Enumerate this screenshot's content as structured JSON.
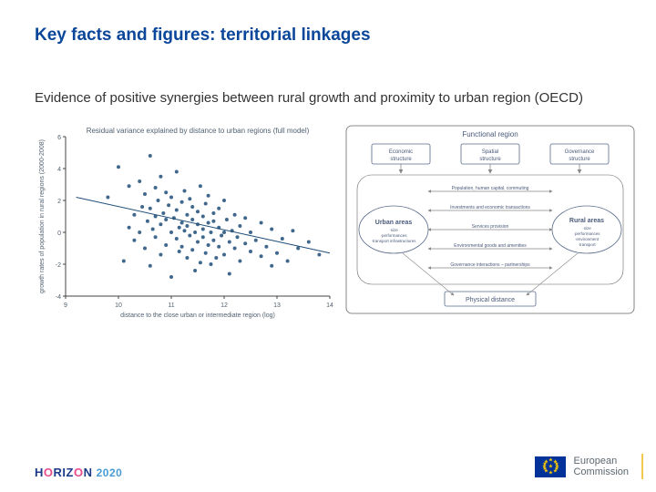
{
  "title": "Key facts and figures: territorial linkages",
  "subtitle": "Evidence of positive synergies between rural growth and proximity to urban region (OECD)",
  "scatter": {
    "type": "scatter",
    "title": "Residual variance explained by distance to urban regions (full model)",
    "xlabel": "distance to the close urban or intermediate region (log)",
    "ylabel": "growth rates of population in rural regions (2000-2008)",
    "xlim": [
      9,
      14
    ],
    "ylim": [
      -4,
      6
    ],
    "xticks": [
      9,
      10,
      11,
      12,
      13,
      14
    ],
    "yticks": [
      -4,
      -2,
      0,
      2,
      4,
      6
    ],
    "point_color": "#1f4e79",
    "axis_color": "#444444",
    "grid_color": "#cccccc",
    "background_color": "#ffffff",
    "font_size": 7,
    "marker_size": 2,
    "trend": {
      "x1": 9.2,
      "y1": 2.2,
      "x2": 14.0,
      "y2": -1.3,
      "color": "#1f4e79",
      "width": 1
    },
    "points": [
      [
        9.8,
        2.2
      ],
      [
        10.0,
        4.1
      ],
      [
        10.1,
        -1.8
      ],
      [
        10.2,
        0.3
      ],
      [
        10.2,
        2.9
      ],
      [
        10.3,
        1.1
      ],
      [
        10.3,
        -0.5
      ],
      [
        10.4,
        3.2
      ],
      [
        10.4,
        0.0
      ],
      [
        10.45,
        1.6
      ],
      [
        10.5,
        2.4
      ],
      [
        10.5,
        -1.0
      ],
      [
        10.55,
        0.7
      ],
      [
        10.6,
        4.8
      ],
      [
        10.6,
        1.5
      ],
      [
        10.6,
        -2.1
      ],
      [
        10.65,
        0.2
      ],
      [
        10.7,
        2.8
      ],
      [
        10.7,
        1.0
      ],
      [
        10.7,
        -0.3
      ],
      [
        10.75,
        2.0
      ],
      [
        10.8,
        0.5
      ],
      [
        10.8,
        3.5
      ],
      [
        10.8,
        -1.4
      ],
      [
        10.85,
        1.2
      ],
      [
        10.9,
        0.8
      ],
      [
        10.9,
        2.5
      ],
      [
        10.9,
        -0.8
      ],
      [
        10.95,
        1.7
      ],
      [
        11.0,
        0.0
      ],
      [
        11.0,
        -2.8
      ],
      [
        11.0,
        2.2
      ],
      [
        11.05,
        0.9
      ],
      [
        11.1,
        -0.4
      ],
      [
        11.1,
        1.4
      ],
      [
        11.1,
        3.8
      ],
      [
        11.15,
        0.3
      ],
      [
        11.15,
        -1.2
      ],
      [
        11.2,
        1.9
      ],
      [
        11.2,
        0.6
      ],
      [
        11.2,
        -0.9
      ],
      [
        11.25,
        2.6
      ],
      [
        11.25,
        0.1
      ],
      [
        11.3,
        -1.6
      ],
      [
        11.3,
        1.1
      ],
      [
        11.3,
        0.4
      ],
      [
        11.35,
        2.1
      ],
      [
        11.35,
        -0.2
      ],
      [
        11.4,
        0.8
      ],
      [
        11.4,
        -1.1
      ],
      [
        11.4,
        1.6
      ],
      [
        11.45,
        0.0
      ],
      [
        11.45,
        -2.4
      ],
      [
        11.5,
        1.3
      ],
      [
        11.5,
        0.5
      ],
      [
        11.5,
        -0.6
      ],
      [
        11.55,
        2.9
      ],
      [
        11.55,
        -1.9
      ],
      [
        11.6,
        0.2
      ],
      [
        11.6,
        1.0
      ],
      [
        11.6,
        -0.3
      ],
      [
        11.65,
        1.8
      ],
      [
        11.65,
        -1.3
      ],
      [
        11.7,
        0.6
      ],
      [
        11.7,
        -0.8
      ],
      [
        11.7,
        2.3
      ],
      [
        11.75,
        0.0
      ],
      [
        11.75,
        -2.0
      ],
      [
        11.8,
        1.2
      ],
      [
        11.8,
        -0.5
      ],
      [
        11.8,
        0.7
      ],
      [
        11.85,
        -1.6
      ],
      [
        11.9,
        0.3
      ],
      [
        11.9,
        -0.9
      ],
      [
        11.9,
        1.5
      ],
      [
        11.95,
        -0.2
      ],
      [
        12.0,
        0.0
      ],
      [
        12.0,
        -1.4
      ],
      [
        12.0,
        2.0
      ],
      [
        12.05,
        0.8
      ],
      [
        12.1,
        -0.6
      ],
      [
        12.1,
        -2.6
      ],
      [
        12.15,
        0.1
      ],
      [
        12.2,
        -1.0
      ],
      [
        12.2,
        1.1
      ],
      [
        12.25,
        -0.3
      ],
      [
        12.3,
        0.4
      ],
      [
        12.3,
        -1.8
      ],
      [
        12.4,
        -0.7
      ],
      [
        12.4,
        0.9
      ],
      [
        12.5,
        -1.2
      ],
      [
        12.5,
        0.0
      ],
      [
        12.6,
        -0.5
      ],
      [
        12.7,
        -1.5
      ],
      [
        12.7,
        0.6
      ],
      [
        12.8,
        -0.9
      ],
      [
        12.9,
        -2.1
      ],
      [
        12.9,
        0.2
      ],
      [
        13.0,
        -1.3
      ],
      [
        13.1,
        -0.4
      ],
      [
        13.2,
        -1.8
      ],
      [
        13.3,
        0.1
      ],
      [
        13.4,
        -1.0
      ],
      [
        13.6,
        -0.6
      ],
      [
        13.8,
        -1.4
      ]
    ]
  },
  "diagram": {
    "type": "network",
    "background_color": "#ffffff",
    "border_color": "#666666",
    "box_fill": "#ffffff",
    "box_stroke": "#5a6b8c",
    "ellipse_stroke": "#5a6b8c",
    "text_color": "#4a5a7a",
    "arrow_color": "#888888",
    "font_size": 6,
    "title": "Functional region",
    "top_boxes": [
      {
        "label": "Economic structure"
      },
      {
        "label": "Spatial structure"
      },
      {
        "label": "Governance structure"
      }
    ],
    "left_node": {
      "title": "Urban areas",
      "sub": "size · performances · transport infrastructures"
    },
    "right_node": {
      "title": "Rural areas",
      "sub": "size · performances · environment · transport"
    },
    "links": [
      "Population, human capital, commuting",
      "Investments and economic transactions",
      "Services provision",
      "Environmental goods and amenities",
      "Governance interactions – partnerships"
    ],
    "bottom_box": "Physical distance"
  },
  "footer": {
    "programme": "HORIZON 2020",
    "org": "European Commission"
  }
}
